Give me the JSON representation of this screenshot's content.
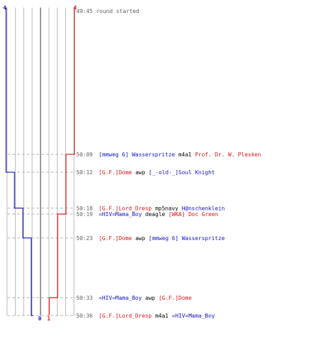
{
  "colors": {
    "blue": "#1010c0",
    "red": "#e01010",
    "grid": "#b8b8b8",
    "center": "#606060",
    "dashed": "#b0b0b0",
    "time": "#606060"
  },
  "start": {
    "time": "49:45",
    "text": "round started"
  },
  "top_scores": {
    "blue": "4",
    "red": "4"
  },
  "bottom_scores": {
    "blue": "0",
    "red": "1"
  },
  "events": [
    {
      "time": "50:09",
      "killer": "[mmweg 6] Wasserspritze",
      "killer_team": "blue",
      "weapon": "m4a1",
      "victim": "Prof. Dr. W. Plesken",
      "victim_team": "red",
      "blue_alive": 4,
      "red_alive": 3
    },
    {
      "time": "50:12",
      "killer": "[G.F.]Dome",
      "killer_team": "red",
      "weapon": "awp",
      "victim": "[_-old-_]Soul Knight",
      "victim_team": "blue",
      "blue_alive": 3,
      "red_alive": 3
    },
    {
      "time": "50:18",
      "killer": "[G.F.]Lord_Dresp",
      "killer_team": "red",
      "weapon": "mp5navy",
      "victim": "H@nschenklein",
      "victim_team": "blue",
      "blue_alive": 2,
      "red_alive": 3
    },
    {
      "time": "50:19",
      "killer": "=HIV=Mama_Boy",
      "killer_team": "blue",
      "weapon": "deagle",
      "victim": "[WKA] Doc Green",
      "victim_team": "red",
      "blue_alive": 2,
      "red_alive": 2
    },
    {
      "time": "50:23",
      "killer": "[G.F.]Dome",
      "killer_team": "red",
      "weapon": "awp",
      "victim": "[mmweg 6] Wasserspritze",
      "victim_team": "blue",
      "blue_alive": 1,
      "red_alive": 2
    },
    {
      "time": "50:33",
      "killer": "=HIV=Mama_Boy",
      "killer_team": "blue",
      "weapon": "awp",
      "victim": "[G.F.]Dome",
      "victim_team": "red",
      "blue_alive": 1,
      "red_alive": 1
    },
    {
      "time": "50:36",
      "killer": "[G.F.]Lord_Dresp",
      "killer_team": "red",
      "weapon": "m4a1",
      "victim": "=HIV=Mama_Boy",
      "victim_team": "blue",
      "blue_alive": 0,
      "red_alive": 1
    }
  ]
}
